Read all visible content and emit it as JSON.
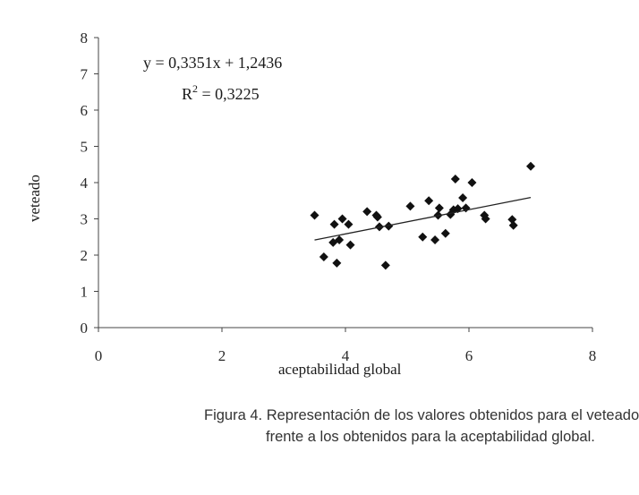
{
  "chart_data": {
    "type": "scatter",
    "xlabel": "aceptabilidad global",
    "ylabel": "veteado",
    "xlim": [
      0,
      8
    ],
    "ylim": [
      0,
      8
    ],
    "xticks": [
      "0",
      "2",
      "4",
      "6",
      "8"
    ],
    "yticks": [
      "0",
      "1",
      "2",
      "3",
      "4",
      "5",
      "6",
      "7",
      "8"
    ],
    "grid": false,
    "marker_color": "#111111",
    "points": [
      [
        3.5,
        3.1
      ],
      [
        3.65,
        1.95
      ],
      [
        3.8,
        2.35
      ],
      [
        3.82,
        2.85
      ],
      [
        3.86,
        1.78
      ],
      [
        3.9,
        2.42
      ],
      [
        3.95,
        3.0
      ],
      [
        4.05,
        2.85
      ],
      [
        4.08,
        2.28
      ],
      [
        4.35,
        3.2
      ],
      [
        4.5,
        3.1
      ],
      [
        4.52,
        3.05
      ],
      [
        4.55,
        2.78
      ],
      [
        4.65,
        1.72
      ],
      [
        4.7,
        2.8
      ],
      [
        5.05,
        3.35
      ],
      [
        5.25,
        2.5
      ],
      [
        5.35,
        3.5
      ],
      [
        5.45,
        2.42
      ],
      [
        5.5,
        3.1
      ],
      [
        5.52,
        3.3
      ],
      [
        5.62,
        2.6
      ],
      [
        5.7,
        3.12
      ],
      [
        5.75,
        3.25
      ],
      [
        5.78,
        4.1
      ],
      [
        5.82,
        3.28
      ],
      [
        5.9,
        3.58
      ],
      [
        5.95,
        3.3
      ],
      [
        6.05,
        4.0
      ],
      [
        6.25,
        3.1
      ],
      [
        6.27,
        3.0
      ],
      [
        6.7,
        2.98
      ],
      [
        6.72,
        2.82
      ],
      [
        7.0,
        4.45
      ]
    ],
    "trendline": {
      "slope": 0.3351,
      "intercept": 1.2436,
      "x_range": [
        3.5,
        7.0
      ],
      "equation": "y = 0,3351x + 1,2436",
      "r2_prefix": "R",
      "r2_sup": "2",
      "r2_value": " = 0,3225"
    }
  },
  "caption": {
    "line1": "Figura 4. Representación de los valores obtenidos para el veteado",
    "line2": "frente a los obtenidos para la aceptabilidad global."
  }
}
